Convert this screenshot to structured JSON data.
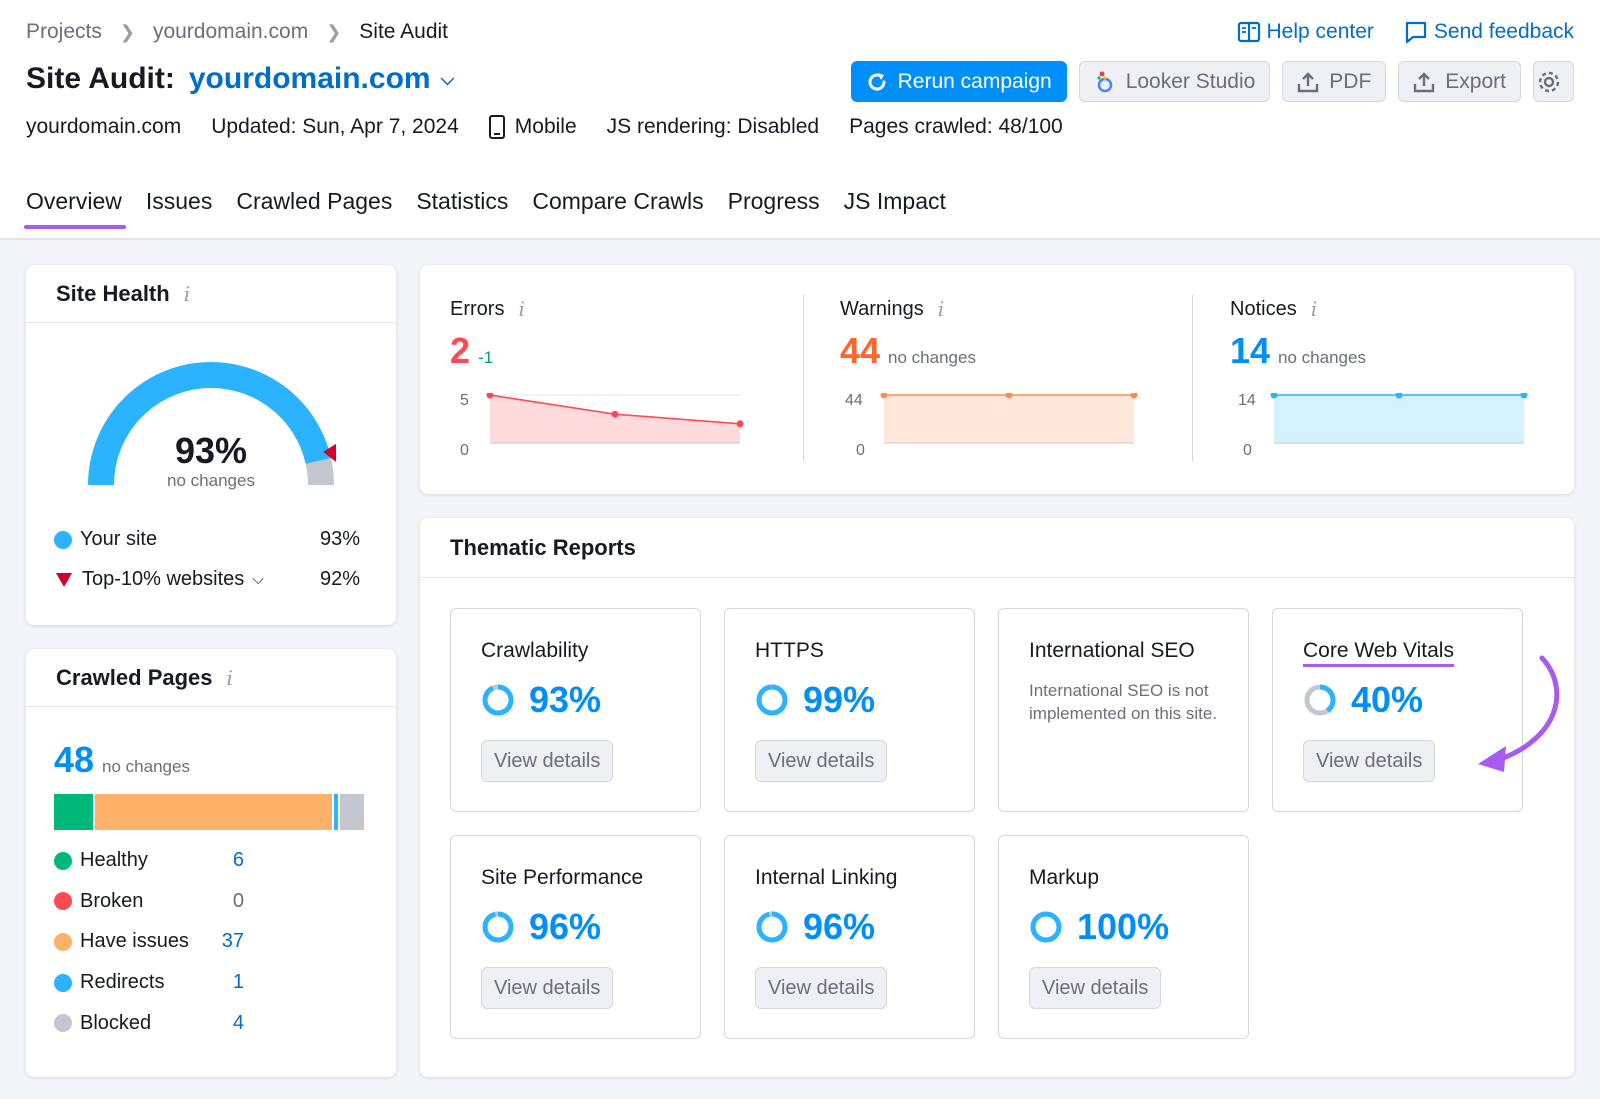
{
  "breadcrumb": {
    "items": [
      "Projects",
      "yourdomain.com",
      "Site Audit"
    ]
  },
  "header": {
    "title_prefix": "Site Audit:",
    "domain": "yourdomain.com",
    "help_center": "Help center",
    "send_feedback": "Send feedback",
    "rerun": "Rerun campaign",
    "looker": "Looker Studio",
    "pdf": "PDF",
    "export": "Export"
  },
  "meta": {
    "domain": "yourdomain.com",
    "updated": "Updated: Sun, Apr 7, 2024",
    "device": "Mobile",
    "js": "JS rendering: Disabled",
    "pages": "Pages crawled: 48/100"
  },
  "tabs": [
    "Overview",
    "Issues",
    "Crawled Pages",
    "Statistics",
    "Compare Crawls",
    "Progress",
    "JS Impact"
  ],
  "site_health": {
    "title": "Site Health",
    "value": "93%",
    "value_num": 93,
    "top10_num": 92,
    "status": "no changes",
    "your_site_label": "Your site",
    "your_site_value": "93%",
    "top_label": "Top-10% websites",
    "top_value": "92%"
  },
  "crawled_pages": {
    "title": "Crawled Pages",
    "total": "48",
    "status": "no changes",
    "items": [
      {
        "label": "Healthy",
        "value": "6",
        "color": "#00b87a"
      },
      {
        "label": "Broken",
        "value": "0",
        "color": "#ff4953"
      },
      {
        "label": "Have issues",
        "value": "37",
        "color": "#ffb16a"
      },
      {
        "label": "Redirects",
        "value": "1",
        "color": "#2bb3ff"
      },
      {
        "label": "Blocked",
        "value": "4",
        "color": "#c4c7cf"
      }
    ]
  },
  "metrics": {
    "errors": {
      "label": "Errors",
      "value": "2",
      "delta": "-1",
      "ymax": "5",
      "ymin": "0",
      "color": "#ff4953"
    },
    "warnings": {
      "label": "Warnings",
      "value": "44",
      "delta": "no changes",
      "ymax": "44",
      "ymin": "0",
      "color": "#ff642d"
    },
    "notices": {
      "label": "Notices",
      "value": "14",
      "delta": "no changes",
      "ymax": "14",
      "ymin": "0",
      "color": "#008ff8"
    }
  },
  "chart_data": [
    {
      "type": "area",
      "title": "Errors",
      "y": [
        5,
        3,
        2
      ],
      "ylim": [
        0,
        5
      ],
      "color": "#ff4953"
    },
    {
      "type": "area",
      "title": "Warnings",
      "y": [
        44,
        44,
        44
      ],
      "ylim": [
        0,
        44
      ],
      "color": "#ff8d4a"
    },
    {
      "type": "area",
      "title": "Notices",
      "y": [
        14,
        14,
        14
      ],
      "ylim": [
        0,
        14
      ],
      "color": "#2bb3ff"
    }
  ],
  "thematic": {
    "title": "Thematic Reports",
    "view_label": "View details",
    "tiles": [
      {
        "name": "Crawlability",
        "value": "93%",
        "pct": 93
      },
      {
        "name": "HTTPS",
        "value": "99%",
        "pct": 99
      },
      {
        "name": "International SEO",
        "desc": "International SEO is not implemented on this site."
      },
      {
        "name": "Core Web Vitals",
        "value": "40%",
        "pct": 40
      },
      {
        "name": "Site Performance",
        "value": "96%",
        "pct": 96
      },
      {
        "name": "Internal Linking",
        "value": "96%",
        "pct": 96
      },
      {
        "name": "Markup",
        "value": "100%",
        "pct": 100
      }
    ]
  }
}
